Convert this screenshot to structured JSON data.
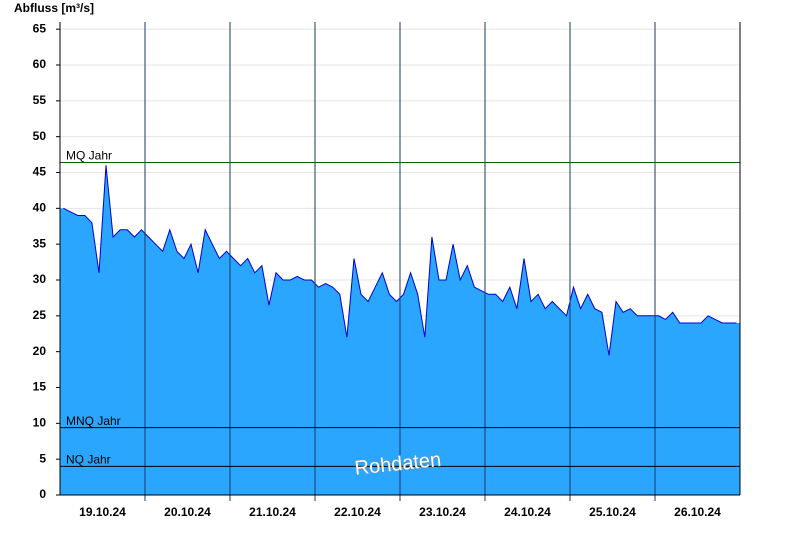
{
  "chart_data": {
    "type": "area",
    "title": "Abfluss [m³/s]",
    "categories": [
      "19.10.24",
      "20.10.24",
      "21.10.24",
      "22.10.24",
      "23.10.24",
      "24.10.24",
      "25.10.24",
      "26.10.24"
    ],
    "values": [
      [
        40,
        39.5,
        39,
        39,
        38,
        31,
        46,
        36,
        37,
        37,
        36,
        37
      ],
      [
        36,
        35,
        34,
        37,
        34,
        33,
        35,
        31,
        37,
        35,
        33,
        34
      ],
      [
        33,
        32,
        33,
        31,
        32,
        26.5,
        31,
        30,
        30,
        30.5,
        30,
        30
      ],
      [
        29,
        29.5,
        29,
        28,
        22,
        33,
        28,
        27,
        29,
        31,
        28,
        27
      ],
      [
        28,
        31,
        28,
        22,
        36,
        30,
        30,
        35,
        30,
        32,
        29,
        28.5
      ],
      [
        28,
        28,
        27,
        29,
        26,
        33,
        27,
        28,
        26,
        27,
        26,
        25
      ],
      [
        29,
        26,
        28,
        26,
        25.5,
        19.5,
        27,
        25.5,
        26,
        25,
        25,
        25
      ],
      [
        25,
        24.5,
        25.5,
        24,
        24,
        24,
        24,
        25,
        24.5,
        24,
        24,
        24
      ]
    ],
    "color": "#2aa6ff",
    "line_color": "#0000cc",
    "ylim": [
      0,
      66
    ],
    "yticks": [
      0,
      5,
      10,
      15,
      20,
      25,
      30,
      35,
      40,
      45,
      50,
      55,
      60,
      65
    ],
    "grid": true,
    "reference_lines": [
      {
        "label": "MQ Jahr",
        "value": 46.4,
        "color": "#006600"
      },
      {
        "label": "MNQ Jahr",
        "value": 9.4,
        "color": "#000000"
      },
      {
        "label": "NQ Jahr",
        "value": 4.0,
        "color": "#000000"
      }
    ],
    "watermark": "Rohdaten"
  }
}
